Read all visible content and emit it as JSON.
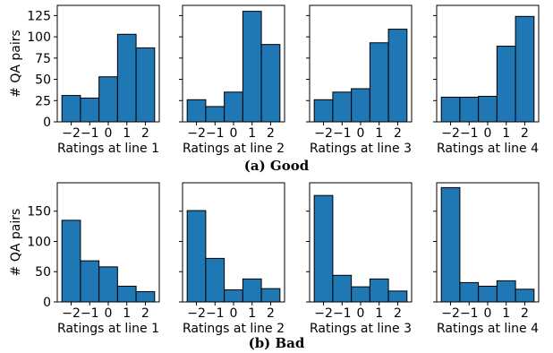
{
  "chart_data": [
    {
      "type": "bar",
      "group": "good",
      "categories": [
        "-2",
        "-1",
        "0",
        "1",
        "2"
      ],
      "values": [
        31,
        28,
        53,
        103,
        87
      ],
      "xlabel": "Ratings at line 1",
      "ylabel": "# QA pairs",
      "xticks": [
        "−2",
        "−1",
        "0",
        "1",
        "2"
      ],
      "yticks": [
        0,
        25,
        50,
        75,
        100,
        125
      ],
      "ylim": [
        0,
        137
      ]
    },
    {
      "type": "bar",
      "group": "good",
      "categories": [
        "-2",
        "-1",
        "0",
        "1",
        "2"
      ],
      "values": [
        26,
        18,
        35,
        130,
        91
      ],
      "xlabel": "Ratings at line 2",
      "ylabel": "",
      "xticks": [
        "−2",
        "−1",
        "0",
        "1",
        "2"
      ],
      "yticks": [],
      "ylim": [
        0,
        137
      ]
    },
    {
      "type": "bar",
      "group": "good",
      "categories": [
        "-2",
        "-1",
        "0",
        "1",
        "2"
      ],
      "values": [
        26,
        35,
        39,
        93,
        109
      ],
      "xlabel": "Ratings at line 3",
      "ylabel": "",
      "xticks": [
        "−2",
        "−1",
        "0",
        "1",
        "2"
      ],
      "yticks": [],
      "ylim": [
        0,
        137
      ]
    },
    {
      "type": "bar",
      "group": "good",
      "categories": [
        "-2",
        "-1",
        "0",
        "1",
        "2"
      ],
      "values": [
        29,
        29,
        30,
        89,
        124
      ],
      "xlabel": "Ratings at line 4",
      "ylabel": "",
      "xticks": [
        "−2",
        "−1",
        "0",
        "1",
        "2"
      ],
      "yticks": [],
      "ylim": [
        0,
        137
      ]
    },
    {
      "type": "bar",
      "group": "bad",
      "categories": [
        "-2",
        "-1",
        "0",
        "1",
        "2"
      ],
      "values": [
        135,
        68,
        58,
        26,
        17
      ],
      "xlabel": "Ratings at line 1",
      "ylabel": "# QA pairs",
      "xticks": [
        "−2",
        "−1",
        "0",
        "1",
        "2"
      ],
      "yticks": [
        0,
        50,
        100,
        150
      ],
      "ylim": [
        0,
        197
      ]
    },
    {
      "type": "bar",
      "group": "bad",
      "categories": [
        "-2",
        "-1",
        "0",
        "1",
        "2"
      ],
      "values": [
        151,
        72,
        20,
        38,
        22
      ],
      "xlabel": "Ratings at line 2",
      "ylabel": "",
      "xticks": [
        "−2",
        "−1",
        "0",
        "1",
        "2"
      ],
      "yticks": [],
      "ylim": [
        0,
        197
      ]
    },
    {
      "type": "bar",
      "group": "bad",
      "categories": [
        "-2",
        "-1",
        "0",
        "1",
        "2"
      ],
      "values": [
        176,
        44,
        25,
        38,
        18
      ],
      "xlabel": "Ratings at line 3",
      "ylabel": "",
      "xticks": [
        "−2",
        "−1",
        "0",
        "1",
        "2"
      ],
      "yticks": [],
      "ylim": [
        0,
        197
      ]
    },
    {
      "type": "bar",
      "group": "bad",
      "categories": [
        "-2",
        "-1",
        "0",
        "1",
        "2"
      ],
      "values": [
        189,
        32,
        26,
        35,
        21
      ],
      "xlabel": "Ratings at line 4",
      "ylabel": "",
      "xticks": [
        "−2",
        "−1",
        "0",
        "1",
        "2"
      ],
      "yticks": [],
      "ylim": [
        0,
        197
      ]
    }
  ],
  "captions": {
    "good": "(a) Good",
    "bad": "(b) Bad"
  },
  "colors": {
    "bar_fill": "#1f77b4",
    "bar_edge": "#000000",
    "axes": "#000000"
  }
}
